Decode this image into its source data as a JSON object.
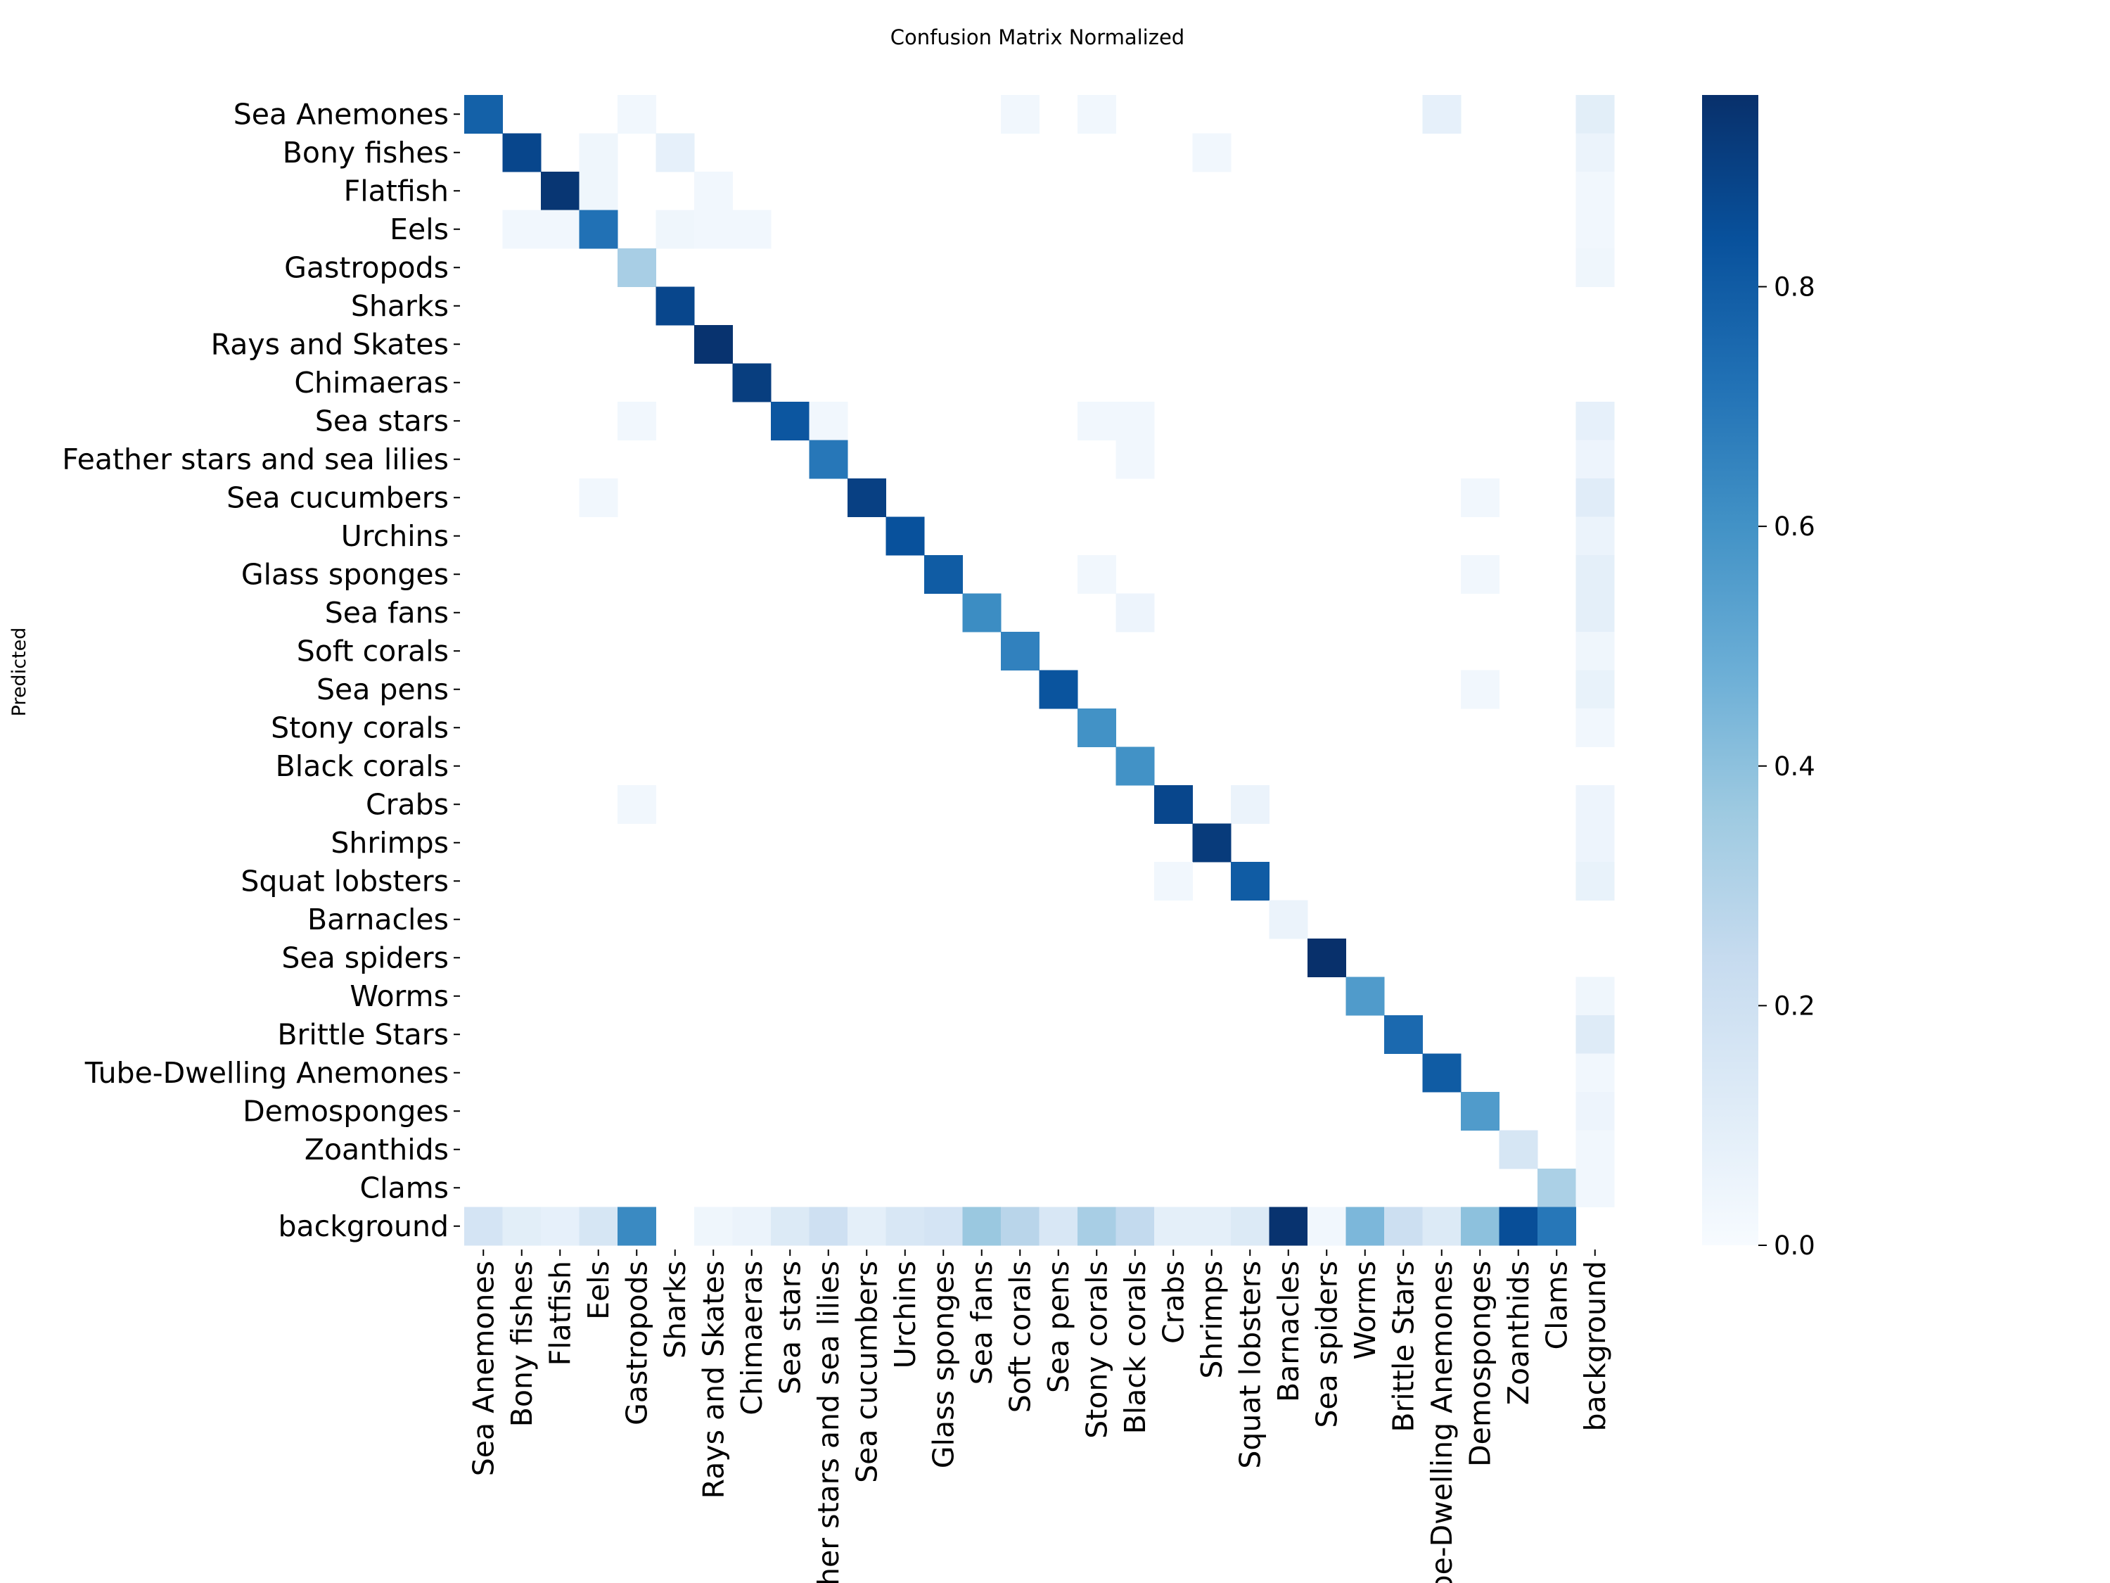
{
  "chart_data": {
    "type": "heatmap",
    "title": "Confusion Matrix Normalized",
    "xlabel": "",
    "ylabel": "Predicted",
    "categories": [
      "Sea Anemones",
      "Bony fishes",
      "Flatfish",
      "Eels",
      "Gastropods",
      "Sharks",
      "Rays and Skates",
      "Chimaeras",
      "Sea stars",
      "Feather stars and sea lilies",
      "Sea cucumbers",
      "Urchins",
      "Glass sponges",
      "Sea fans",
      "Soft corals",
      "Sea pens",
      "Stony corals",
      "Black corals",
      "Crabs",
      "Shrimps",
      "Squat lobsters",
      "Barnacles",
      "Sea spiders",
      "Worms",
      "Brittle Stars",
      "Tube-Dwelling Anemones",
      "Demosponges",
      "Zoanthids",
      "Clams",
      "background"
    ],
    "value_range": [
      0,
      0.96
    ],
    "colormap": "Blues",
    "colorbar_ticks": [
      "0.0",
      "0.2",
      "0.4",
      "0.6",
      "0.8"
    ],
    "colorbar_tick_values": [
      0,
      0.2,
      0.4,
      0.6,
      0.8
    ],
    "cells": [
      [
        0,
        0,
        0.78
      ],
      [
        0,
        4,
        0.03
      ],
      [
        0,
        14,
        0.03
      ],
      [
        0,
        16,
        0.03
      ],
      [
        0,
        25,
        0.08
      ],
      [
        0,
        29,
        0.1
      ],
      [
        1,
        1,
        0.88
      ],
      [
        1,
        3,
        0.04
      ],
      [
        1,
        5,
        0.08
      ],
      [
        1,
        19,
        0.03
      ],
      [
        1,
        29,
        0.06
      ],
      [
        2,
        2,
        0.94
      ],
      [
        2,
        3,
        0.04
      ],
      [
        2,
        6,
        0.03
      ],
      [
        2,
        29,
        0.03
      ],
      [
        3,
        1,
        0.03
      ],
      [
        3,
        2,
        0.03
      ],
      [
        3,
        3,
        0.72
      ],
      [
        3,
        5,
        0.04
      ],
      [
        3,
        6,
        0.03
      ],
      [
        3,
        7,
        0.03
      ],
      [
        3,
        29,
        0.03
      ],
      [
        4,
        4,
        0.33
      ],
      [
        4,
        29,
        0.04
      ],
      [
        5,
        5,
        0.88
      ],
      [
        6,
        6,
        0.95
      ],
      [
        7,
        7,
        0.91
      ],
      [
        8,
        4,
        0.03
      ],
      [
        8,
        8,
        0.82
      ],
      [
        8,
        9,
        0.03
      ],
      [
        8,
        16,
        0.03
      ],
      [
        8,
        17,
        0.03
      ],
      [
        8,
        29,
        0.08
      ],
      [
        9,
        9,
        0.7
      ],
      [
        9,
        17,
        0.03
      ],
      [
        9,
        29,
        0.05
      ],
      [
        10,
        3,
        0.03
      ],
      [
        10,
        10,
        0.9
      ],
      [
        10,
        26,
        0.03
      ],
      [
        10,
        29,
        0.11
      ],
      [
        11,
        11,
        0.84
      ],
      [
        11,
        29,
        0.06
      ],
      [
        12,
        12,
        0.8
      ],
      [
        12,
        16,
        0.03
      ],
      [
        12,
        26,
        0.03
      ],
      [
        12,
        29,
        0.09
      ],
      [
        13,
        13,
        0.62
      ],
      [
        13,
        17,
        0.05
      ],
      [
        13,
        29,
        0.09
      ],
      [
        14,
        14,
        0.66
      ],
      [
        14,
        29,
        0.04
      ],
      [
        15,
        15,
        0.83
      ],
      [
        15,
        26,
        0.03
      ],
      [
        15,
        29,
        0.07
      ],
      [
        16,
        16,
        0.6
      ],
      [
        16,
        29,
        0.03
      ],
      [
        17,
        17,
        0.6
      ],
      [
        18,
        4,
        0.03
      ],
      [
        18,
        18,
        0.88
      ],
      [
        18,
        20,
        0.06
      ],
      [
        18,
        29,
        0.05
      ],
      [
        19,
        19,
        0.92
      ],
      [
        19,
        29,
        0.05
      ],
      [
        20,
        18,
        0.03
      ],
      [
        20,
        20,
        0.8
      ],
      [
        20,
        29,
        0.07
      ],
      [
        21,
        21,
        0.06
      ],
      [
        22,
        22,
        0.96
      ],
      [
        23,
        23,
        0.56
      ],
      [
        23,
        29,
        0.04
      ],
      [
        24,
        24,
        0.75
      ],
      [
        24,
        29,
        0.12
      ],
      [
        25,
        25,
        0.8
      ],
      [
        25,
        29,
        0.03
      ],
      [
        26,
        26,
        0.56
      ],
      [
        26,
        29,
        0.05
      ],
      [
        27,
        27,
        0.16
      ],
      [
        27,
        29,
        0.03
      ],
      [
        28,
        28,
        0.32
      ],
      [
        28,
        29,
        0.03
      ],
      [
        29,
        0,
        0.17
      ],
      [
        29,
        1,
        0.1
      ],
      [
        29,
        2,
        0.08
      ],
      [
        29,
        3,
        0.16
      ],
      [
        29,
        4,
        0.63
      ],
      [
        29,
        6,
        0.04
      ],
      [
        29,
        7,
        0.06
      ],
      [
        29,
        8,
        0.13
      ],
      [
        29,
        9,
        0.2
      ],
      [
        29,
        10,
        0.09
      ],
      [
        29,
        11,
        0.15
      ],
      [
        29,
        12,
        0.17
      ],
      [
        29,
        13,
        0.37
      ],
      [
        29,
        14,
        0.28
      ],
      [
        29,
        15,
        0.15
      ],
      [
        29,
        16,
        0.33
      ],
      [
        29,
        17,
        0.25
      ],
      [
        29,
        18,
        0.09
      ],
      [
        29,
        19,
        0.09
      ],
      [
        29,
        20,
        0.13
      ],
      [
        29,
        21,
        0.95
      ],
      [
        29,
        22,
        0.03
      ],
      [
        29,
        23,
        0.44
      ],
      [
        29,
        24,
        0.21
      ],
      [
        29,
        25,
        0.13
      ],
      [
        29,
        26,
        0.4
      ],
      [
        29,
        27,
        0.85
      ],
      [
        29,
        28,
        0.7
      ]
    ]
  }
}
